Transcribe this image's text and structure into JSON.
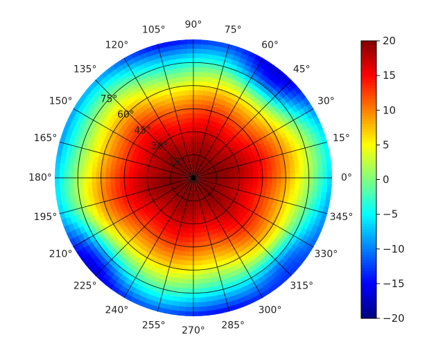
{
  "chart_data": {
    "type": "heatmap",
    "subtype": "polar",
    "title": "",
    "angular_tick_labels": [
      "0°",
      "15°",
      "30°",
      "45°",
      "60°",
      "75°",
      "90°",
      "105°",
      "120°",
      "135°",
      "150°",
      "165°",
      "180°",
      "195°",
      "210°",
      "225°",
      "240°",
      "255°",
      "270°",
      "285°",
      "300°",
      "315°",
      "330°",
      "345°"
    ],
    "angular_ticks_deg": [
      0,
      15,
      30,
      45,
      60,
      75,
      90,
      105,
      120,
      135,
      150,
      165,
      180,
      195,
      210,
      225,
      240,
      255,
      270,
      285,
      300,
      315,
      330,
      345
    ],
    "radial_tick_labels": [
      "15°",
      "30°",
      "45°",
      "60°",
      "75°"
    ],
    "radial_ticks": [
      15,
      30,
      45,
      60,
      75
    ],
    "radial_range": [
      0,
      90
    ],
    "grid": true,
    "colormap": "jet",
    "colorbar": {
      "vmin": -20,
      "vmax": 20,
      "tick_values": [
        20,
        15,
        10,
        5,
        0,
        -5,
        -10,
        -15,
        -20
      ],
      "tick_labels": [
        "20",
        "15",
        "10",
        "5",
        "0",
        "−5",
        "−10",
        "−15",
        "−20"
      ],
      "placement": "right"
    },
    "field_description": {
      "peak_value": 20,
      "peak_location": "center",
      "minimum_regions": [
        {
          "angle_deg": 52,
          "radius": 80,
          "value": -15
        },
        {
          "angle_deg": 217,
          "radius": 82,
          "value": -14
        },
        {
          "angle_deg": 318,
          "radius": 80,
          "value": -14
        }
      ]
    }
  }
}
